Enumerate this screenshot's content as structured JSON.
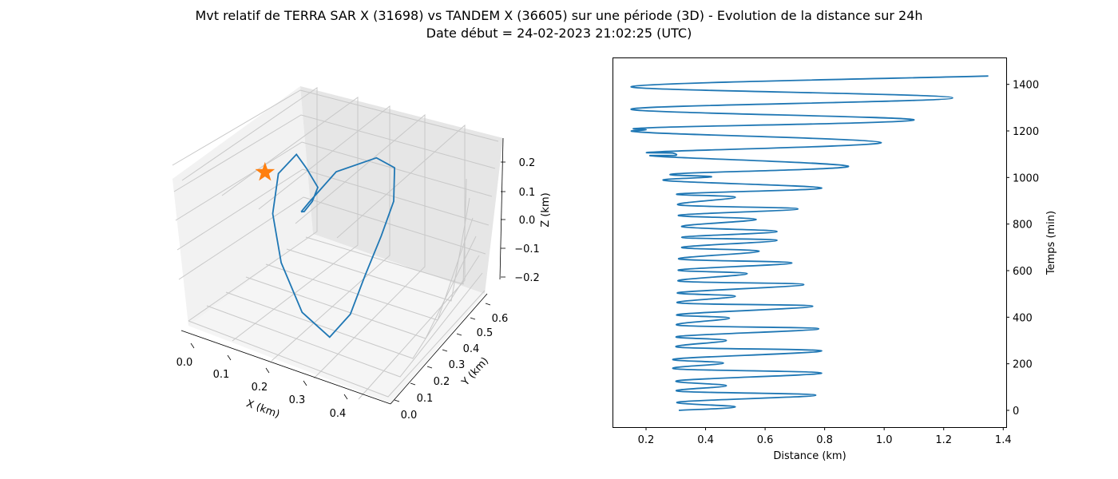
{
  "figure": {
    "title": "Mvt relatif de TERRA SAR X (31698) vs TANDEM X (36605) sur une période (3D) - Evolution de la distance sur 24h",
    "subtitle": "Date début = 24-02-2023 21:02:25 (UTC)"
  },
  "chart_data": [
    {
      "type": "line3d",
      "xlabel": "X (km)",
      "ylabel": "Y (km)",
      "zlabel": "Z (km)",
      "xlim": [
        -0.03,
        0.47
      ],
      "ylim": [
        -0.03,
        0.66
      ],
      "zlim": [
        -0.25,
        0.25
      ],
      "xticks": [
        "0.0",
        "0.1",
        "0.2",
        "0.3",
        "0.4"
      ],
      "yticks": [
        "0.0",
        "0.1",
        "0.2",
        "0.3",
        "0.4",
        "0.5",
        "0.6"
      ],
      "zticks": [
        "−0.2",
        "−0.1",
        "0.0",
        "0.1",
        "0.2"
      ],
      "grid": true,
      "series": [
        {
          "color": "#1f77b4",
          "points": [
            [
              0.13,
              0.38,
              0.0
            ],
            [
              0.13,
              0.4,
              -0.01
            ],
            [
              0.15,
              0.41,
              0.03
            ],
            [
              0.18,
              0.38,
              0.11
            ],
            [
              0.16,
              0.37,
              0.17
            ],
            [
              0.13,
              0.39,
              0.19
            ],
            [
              0.09,
              0.36,
              0.12
            ],
            [
              0.08,
              0.32,
              0.0
            ],
            [
              0.1,
              0.29,
              -0.14
            ],
            [
              0.16,
              0.24,
              -0.25
            ],
            [
              0.24,
              0.2,
              -0.27
            ],
            [
              0.3,
              0.2,
              -0.16
            ],
            [
              0.34,
              0.22,
              -0.02
            ],
            [
              0.37,
              0.28,
              0.1
            ],
            [
              0.38,
              0.36,
              0.18
            ],
            [
              0.36,
              0.44,
              0.24
            ],
            [
              0.3,
              0.48,
              0.22
            ],
            [
              0.2,
              0.46,
              0.13
            ],
            [
              0.14,
              0.41,
              0.02
            ],
            [
              0.13,
              0.38,
              0.0
            ]
          ]
        },
        {
          "color": "#ff7f0e",
          "marker": "star",
          "points": [
            [
              0.0,
              0.5,
              0.0
            ]
          ]
        }
      ]
    },
    {
      "type": "line",
      "xlabel": "Distance (km)",
      "ylabel": "Temps (min)",
      "xlim": [
        0.09,
        1.41
      ],
      "ylim": [
        -72,
        1512
      ],
      "xticks": [
        0.2,
        0.4,
        0.6,
        0.8,
        1.0,
        1.2,
        1.4
      ],
      "yticks": [
        0,
        200,
        400,
        600,
        800,
        1000,
        1200,
        1400
      ],
      "yaxis_position": "right",
      "grid": false,
      "series": [
        {
          "color": "#1f77b4",
          "points": [
            [
              0.31,
              0
            ],
            [
              0.5,
              15
            ],
            [
              0.31,
              36
            ],
            [
              0.77,
              65
            ],
            [
              0.31,
              82
            ],
            [
              0.47,
              106
            ],
            [
              0.31,
              128
            ],
            [
              0.79,
              160
            ],
            [
              0.3,
              178
            ],
            [
              0.46,
              203
            ],
            [
              0.3,
              221
            ],
            [
              0.79,
              255
            ],
            [
              0.31,
              271
            ],
            [
              0.47,
              300
            ],
            [
              0.31,
              318
            ],
            [
              0.78,
              350
            ],
            [
              0.31,
              365
            ],
            [
              0.48,
              396
            ],
            [
              0.31,
              412
            ],
            [
              0.76,
              447
            ],
            [
              0.31,
              461
            ],
            [
              0.5,
              490
            ],
            [
              0.31,
              506
            ],
            [
              0.73,
              540
            ],
            [
              0.31,
              555
            ],
            [
              0.54,
              587
            ],
            [
              0.31,
              603
            ],
            [
              0.69,
              633
            ],
            [
              0.31,
              650
            ],
            [
              0.58,
              683
            ],
            [
              0.32,
              700
            ],
            [
              0.64,
              730
            ],
            [
              0.32,
              743
            ],
            [
              0.64,
              768
            ],
            [
              0.32,
              789
            ],
            [
              0.57,
              820
            ],
            [
              0.31,
              838
            ],
            [
              0.71,
              865
            ],
            [
              0.31,
              882
            ],
            [
              0.5,
              915
            ],
            [
              0.31,
              930
            ],
            [
              0.79,
              955
            ],
            [
              0.27,
              986
            ],
            [
              0.42,
              1003
            ],
            [
              0.3,
              1016
            ],
            [
              0.88,
              1048
            ],
            [
              0.25,
              1090
            ],
            [
              0.3,
              1095
            ],
            [
              0.29,
              1105
            ],
            [
              0.25,
              1111
            ],
            [
              0.99,
              1150
            ],
            [
              0.22,
              1192
            ],
            [
              0.2,
              1205
            ],
            [
              0.24,
              1215
            ],
            [
              1.1,
              1248
            ],
            [
              0.15,
              1294
            ],
            [
              1.23,
              1342
            ],
            [
              0.15,
              1390
            ],
            [
              1.35,
              1436
            ]
          ]
        }
      ]
    }
  ]
}
